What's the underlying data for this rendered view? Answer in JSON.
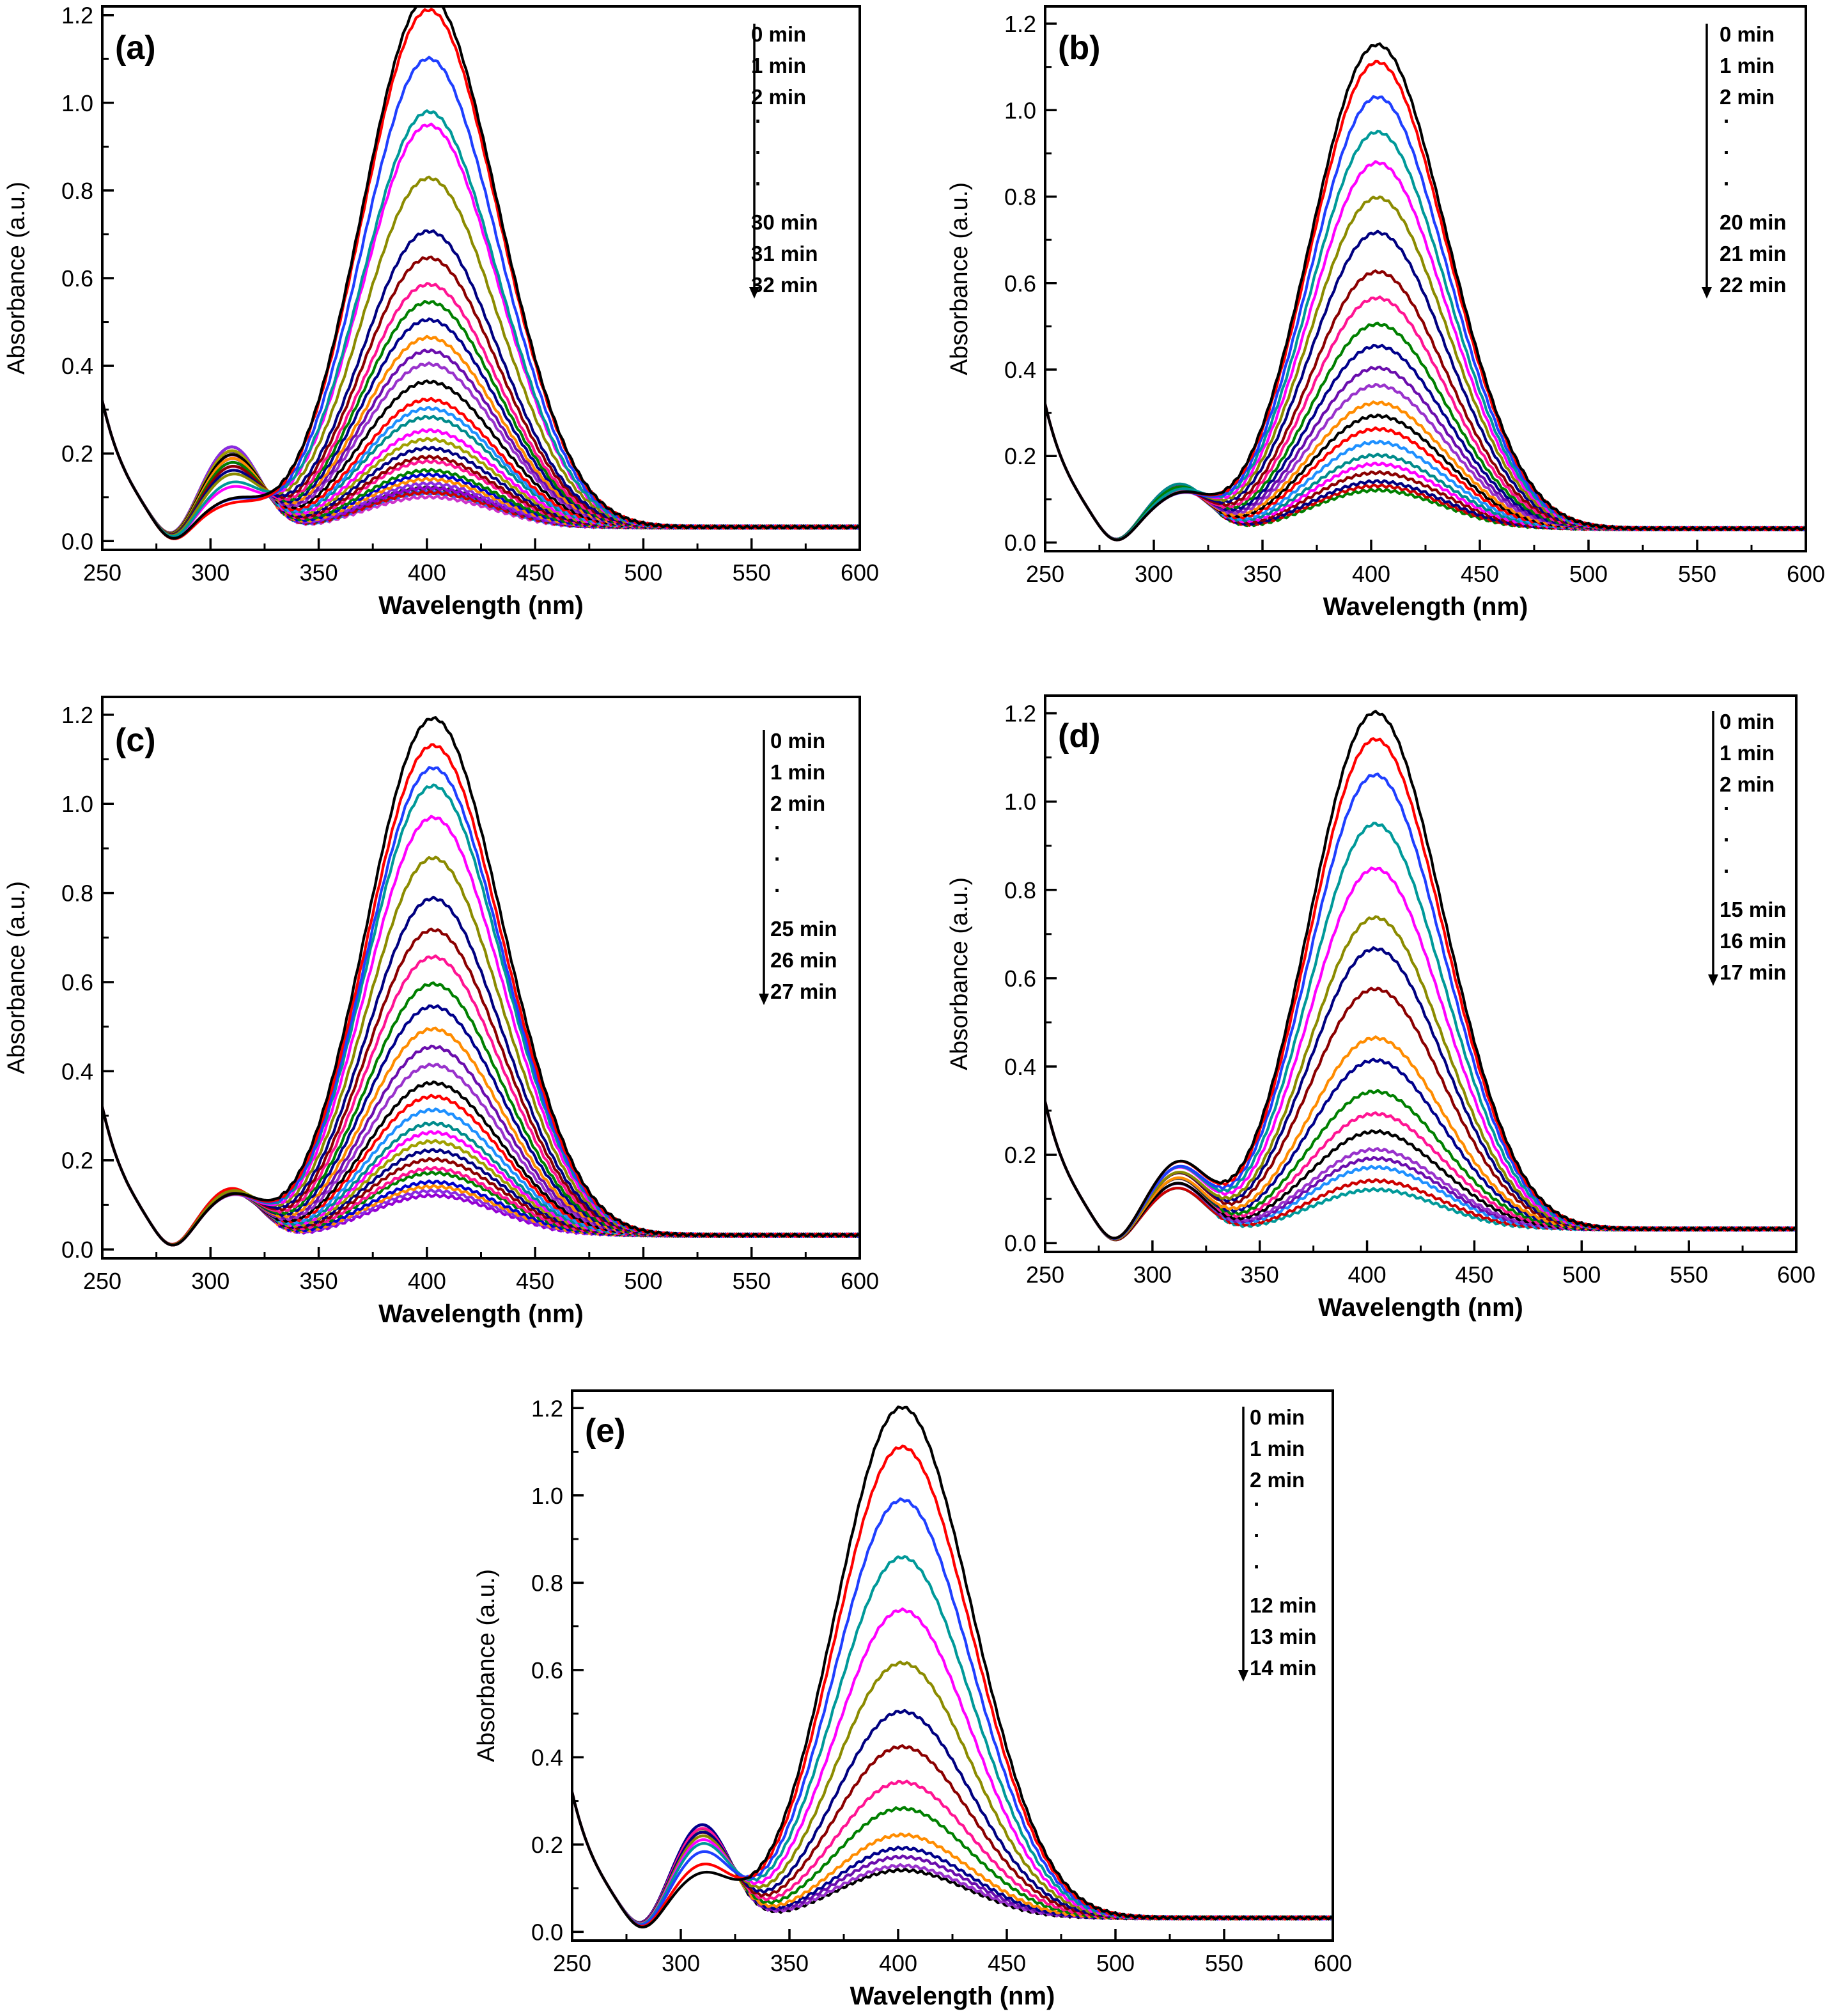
{
  "figure": {
    "chart_data": [
      {
        "type": "line",
        "panel_label": "(a)",
        "xlabel": "Wavelength (nm)",
        "ylabel": "Absorbance (a.u.)",
        "xlim": [
          250,
          600
        ],
        "ylim": [
          -0.02,
          1.22
        ],
        "xticks": [
          250,
          300,
          350,
          400,
          450,
          500,
          550,
          600
        ],
        "xtick_labels": [
          "250",
          "300",
          "350",
          "400",
          "450",
          "500",
          "550",
          "600"
        ],
        "yticks": [
          0.0,
          0.2,
          0.4,
          0.6,
          0.8,
          1.0,
          1.2
        ],
        "ytick_labels": [
          "0.0",
          "0.2",
          "0.4",
          "0.6",
          "0.8",
          "1.0",
          "1.2"
        ],
        "legend": [
          "0 min",
          "1 min",
          "2 min",
          ".",
          ".",
          ".",
          "30 min",
          "31 min",
          "32 min"
        ],
        "legend_direction": "decreasing with time (downward arrow)",
        "peak_wavelength": 400,
        "shoulder_wavelength": 310,
        "peak_absorbance": [
          1.21,
          1.18,
          1.07,
          0.95,
          0.92,
          0.8,
          0.68,
          0.62,
          0.56,
          0.52,
          0.48,
          0.44,
          0.41,
          0.38,
          0.34,
          0.3,
          0.28,
          0.26,
          0.23,
          0.21,
          0.19,
          0.17,
          0.16,
          0.14,
          0.13,
          0.12,
          0.11,
          0.1,
          0.1,
          0.09,
          0.09,
          0.09,
          0.08
        ],
        "shoulder_absorbance": [
          0.12,
          0.11,
          0.12,
          0.16,
          0.15,
          0.18,
          0.19,
          0.2,
          0.2,
          0.21,
          0.21,
          0.22,
          0.22,
          0.22,
          0.23,
          0.23,
          0.23,
          0.23,
          0.23,
          0.24,
          0.24,
          0.24,
          0.24,
          0.24,
          0.24,
          0.24,
          0.25,
          0.25,
          0.25,
          0.25,
          0.25,
          0.25,
          0.25
        ],
        "series_colors": [
          "#000000",
          "#ff0000",
          "#1f3fff",
          "#009999",
          "#ff00ff",
          "#8b8b00",
          "#000080",
          "#8b0000",
          "#ff1493",
          "#008000",
          "#00008b",
          "#ff8c00",
          "#6a0dad",
          "#9932cc",
          "#000000",
          "#ff0000",
          "#1e90ff",
          "#008b8b",
          "#ff00ff",
          "#a0a000",
          "#000080",
          "#8b0000",
          "#ff1493",
          "#008000",
          "#0000cd",
          "#ff8c00",
          "#8a2be2",
          "#9400d3",
          "#333333",
          "#cc0000",
          "#3366ff",
          "#009999",
          "#cc33cc"
        ]
      },
      {
        "type": "line",
        "panel_label": "(b)",
        "xlabel": "Wavelength (nm)",
        "ylabel": "Absorbance (a.u.)",
        "xlim": [
          250,
          600
        ],
        "ylim": [
          -0.02,
          1.24
        ],
        "xticks": [
          250,
          300,
          350,
          400,
          450,
          500,
          550,
          600
        ],
        "xtick_labels": [
          "250",
          "300",
          "350",
          "400",
          "450",
          "500",
          "550",
          "600"
        ],
        "yticks": [
          0.0,
          0.2,
          0.4,
          0.6,
          0.8,
          1.0,
          1.2
        ],
        "ytick_labels": [
          "0.0",
          "0.2",
          "0.4",
          "0.6",
          "0.8",
          "1.0",
          "1.2"
        ],
        "legend": [
          "0 min",
          "1 min",
          "2 min",
          ".",
          ".",
          ".",
          "20 min",
          "21 min",
          "22 min"
        ],
        "legend_direction": "decreasing with time (downward arrow)",
        "peak_wavelength": 402,
        "shoulder_wavelength": 312,
        "peak_absorbance": [
          1.12,
          1.08,
          1.0,
          0.92,
          0.85,
          0.77,
          0.69,
          0.6,
          0.54,
          0.48,
          0.43,
          0.38,
          0.34,
          0.3,
          0.27,
          0.24,
          0.21,
          0.18,
          0.16,
          0.14,
          0.12,
          0.11,
          0.1
        ],
        "shoulder_absorbance": [
          0.14,
          0.14,
          0.14,
          0.15,
          0.15,
          0.15,
          0.15,
          0.15,
          0.15,
          0.16,
          0.16,
          0.16,
          0.16,
          0.16,
          0.16,
          0.16,
          0.16,
          0.17,
          0.17,
          0.17,
          0.17,
          0.17,
          0.17
        ],
        "series_colors": [
          "#000000",
          "#ff0000",
          "#1f3fff",
          "#009999",
          "#ff00ff",
          "#8b8b00",
          "#000080",
          "#8b0000",
          "#ff1493",
          "#008000",
          "#00008b",
          "#6a0dad",
          "#9932cc",
          "#ff8c00",
          "#000000",
          "#ff0000",
          "#1e90ff",
          "#008b8b",
          "#ff00ff",
          "#8b0000",
          "#000080",
          "#cc0000",
          "#008000"
        ]
      },
      {
        "type": "line",
        "panel_label": "(c)",
        "xlabel": "Wavelength (nm)",
        "ylabel": "Absorbance (a.u.)",
        "xlim": [
          250,
          600
        ],
        "ylim": [
          -0.02,
          1.24
        ],
        "xticks": [
          250,
          300,
          350,
          400,
          450,
          500,
          550,
          600
        ],
        "xtick_labels": [
          "250",
          "300",
          "350",
          "400",
          "450",
          "500",
          "550",
          "600"
        ],
        "yticks": [
          0.0,
          0.2,
          0.4,
          0.6,
          0.8,
          1.0,
          1.2
        ],
        "ytick_labels": [
          "0.0",
          "0.2",
          "0.4",
          "0.6",
          "0.8",
          "1.0",
          "1.2"
        ],
        "legend": [
          "0 min",
          "1 min",
          "2 min",
          ".",
          ".",
          ".",
          "25 min",
          "26 min",
          "27 min"
        ],
        "legend_direction": "decreasing with time (downward arrow)",
        "peak_wavelength": 402,
        "shoulder_wavelength": 310,
        "peak_absorbance": [
          1.16,
          1.1,
          1.05,
          1.01,
          0.94,
          0.85,
          0.76,
          0.69,
          0.63,
          0.57,
          0.52,
          0.47,
          0.43,
          0.39,
          0.35,
          0.32,
          0.29,
          0.26,
          0.24,
          0.22,
          0.2,
          0.18,
          0.16,
          0.15,
          0.13,
          0.12,
          0.11,
          0.1
        ],
        "shoulder_absorbance": [
          0.15,
          0.15,
          0.15,
          0.15,
          0.15,
          0.16,
          0.16,
          0.16,
          0.16,
          0.16,
          0.16,
          0.16,
          0.16,
          0.16,
          0.16,
          0.17,
          0.17,
          0.17,
          0.17,
          0.17,
          0.17,
          0.17,
          0.17,
          0.17,
          0.17,
          0.17,
          0.17,
          0.17
        ],
        "series_colors": [
          "#000000",
          "#ff0000",
          "#1f3fff",
          "#009999",
          "#ff00ff",
          "#8b8b00",
          "#000080",
          "#8b0000",
          "#ff1493",
          "#008000",
          "#00008b",
          "#ff8c00",
          "#6a0dad",
          "#9932cc",
          "#000000",
          "#ff0000",
          "#1e90ff",
          "#008b8b",
          "#ff00ff",
          "#a0a000",
          "#000080",
          "#8b0000",
          "#ff1493",
          "#008000",
          "#0000cd",
          "#ff8c00",
          "#8a2be2",
          "#9400d3"
        ]
      },
      {
        "type": "line",
        "panel_label": "(d)",
        "xlabel": "Wavelength (nm)",
        "ylabel": "Absorbance (a.u.)",
        "xlim": [
          250,
          600
        ],
        "ylim": [
          -0.02,
          1.24
        ],
        "xticks": [
          250,
          300,
          350,
          400,
          450,
          500,
          550,
          600
        ],
        "xtick_labels": [
          "250",
          "300",
          "350",
          "400",
          "450",
          "500",
          "550",
          "600"
        ],
        "yticks": [
          0.0,
          0.2,
          0.4,
          0.6,
          0.8,
          1.0,
          1.2
        ],
        "ytick_labels": [
          "0.0",
          "0.2",
          "0.4",
          "0.6",
          "0.8",
          "1.0",
          "1.2"
        ],
        "legend": [
          "0 min",
          "1 min",
          "2 min",
          ".",
          ".",
          ".",
          "15 min",
          "16 min",
          "17 min"
        ],
        "legend_direction": "decreasing with time (downward arrow)",
        "peak_wavelength": 403,
        "shoulder_wavelength": 312,
        "peak_absorbance": [
          1.17,
          1.11,
          1.03,
          0.92,
          0.82,
          0.71,
          0.64,
          0.55,
          0.44,
          0.39,
          0.32,
          0.27,
          0.23,
          0.19,
          0.17,
          0.15,
          0.12,
          0.1
        ],
        "shoulder_absorbance": [
          0.21,
          0.21,
          0.2,
          0.2,
          0.2,
          0.19,
          0.19,
          0.19,
          0.18,
          0.18,
          0.18,
          0.18,
          0.17,
          0.17,
          0.17,
          0.17,
          0.16,
          0.16
        ],
        "series_colors": [
          "#000000",
          "#ff0000",
          "#1f3fff",
          "#009999",
          "#ff00ff",
          "#8b8b00",
          "#000080",
          "#8b0000",
          "#ff8c00",
          "#00008b",
          "#008000",
          "#ff1493",
          "#000000",
          "#9932cc",
          "#6a0dad",
          "#1e90ff",
          "#cc0000",
          "#009999"
        ]
      },
      {
        "type": "line",
        "panel_label": "(e)",
        "xlabel": "Wavelength (nm)",
        "ylabel": "Absorbance (a.u.)",
        "xlim": [
          250,
          600
        ],
        "ylim": [
          -0.02,
          1.24
        ],
        "xticks": [
          250,
          300,
          350,
          400,
          450,
          500,
          550,
          600
        ],
        "xtick_labels": [
          "250",
          "300",
          "350",
          "400",
          "450",
          "500",
          "550",
          "600"
        ],
        "yticks": [
          0.0,
          0.2,
          0.4,
          0.6,
          0.8,
          1.0,
          1.2
        ],
        "ytick_labels": [
          "0.0",
          "0.2",
          "0.4",
          "0.6",
          "0.8",
          "1.0",
          "1.2"
        ],
        "legend": [
          "0 min",
          "1 min",
          "2 min",
          ".",
          ".",
          ".",
          "12 min",
          "13 min",
          "14 min"
        ],
        "legend_direction": "decreasing with time (downward arrow)",
        "peak_wavelength": 401,
        "shoulder_wavelength": 310,
        "peak_absorbance": [
          1.17,
          1.08,
          0.96,
          0.83,
          0.71,
          0.59,
          0.48,
          0.4,
          0.32,
          0.26,
          0.2,
          0.17,
          0.15,
          0.13,
          0.12
        ],
        "shoulder_absorbance": [
          0.16,
          0.18,
          0.21,
          0.23,
          0.24,
          0.25,
          0.26,
          0.26,
          0.27,
          0.27,
          0.27,
          0.28,
          0.28,
          0.28,
          0.28
        ],
        "series_colors": [
          "#000000",
          "#ff0000",
          "#1f3fff",
          "#009999",
          "#ff00ff",
          "#8b8b00",
          "#000080",
          "#8b0000",
          "#ff1493",
          "#008000",
          "#ff8c00",
          "#00008b",
          "#6a0dad",
          "#9932cc",
          "#000000"
        ]
      }
    ]
  }
}
